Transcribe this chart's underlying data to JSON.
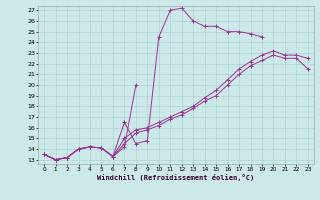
{
  "xlabel": "Windchill (Refroidissement éolien,°C)",
  "bg_color": "#cce8e8",
  "grid_color": "#aad4d4",
  "line_color": "#993399",
  "xlim_min": -0.5,
  "xlim_max": 23.5,
  "ylim_min": 12.6,
  "ylim_max": 27.4,
  "xticks": [
    0,
    1,
    2,
    3,
    4,
    5,
    6,
    7,
    8,
    9,
    10,
    11,
    12,
    13,
    14,
    15,
    16,
    17,
    18,
    19,
    20,
    21,
    22,
    23
  ],
  "yticks": [
    13,
    14,
    15,
    16,
    17,
    18,
    19,
    20,
    21,
    22,
    23,
    24,
    25,
    26,
    27
  ],
  "series": [
    {
      "x": [
        0,
        1,
        2,
        3,
        4,
        5,
        6,
        7,
        8
      ],
      "y": [
        13.5,
        13.0,
        13.2,
        14.0,
        14.2,
        14.1,
        13.3,
        14.2,
        20.0
      ]
    },
    {
      "x": [
        0,
        1,
        2,
        3,
        4,
        5,
        6,
        7,
        8,
        9,
        10,
        11,
        12,
        13,
        14,
        15,
        16,
        17,
        18,
        19
      ],
      "y": [
        13.5,
        13.0,
        13.2,
        14.0,
        14.2,
        14.1,
        13.3,
        16.5,
        14.5,
        14.8,
        24.5,
        27.0,
        27.2,
        26.0,
        25.5,
        25.5,
        25.0,
        25.0,
        24.8,
        24.5
      ]
    },
    {
      "x": [
        0,
        1,
        2,
        3,
        4,
        5,
        6,
        7,
        8,
        9,
        10,
        11,
        12,
        13,
        14,
        15,
        16,
        17,
        18,
        19,
        20,
        21,
        22,
        23
      ],
      "y": [
        13.5,
        13.0,
        13.2,
        14.0,
        14.2,
        14.1,
        13.3,
        15.0,
        15.8,
        16.0,
        16.5,
        17.0,
        17.5,
        18.0,
        18.8,
        19.5,
        20.5,
        21.5,
        22.2,
        22.8,
        23.2,
        22.8,
        22.8,
        22.5
      ]
    },
    {
      "x": [
        0,
        1,
        2,
        3,
        4,
        5,
        6,
        7,
        8,
        9,
        10,
        11,
        12,
        13,
        14,
        15,
        16,
        17,
        18,
        19,
        20,
        21,
        22,
        23
      ],
      "y": [
        13.5,
        13.0,
        13.2,
        14.0,
        14.2,
        14.1,
        13.3,
        14.5,
        15.5,
        15.8,
        16.2,
        16.8,
        17.2,
        17.8,
        18.5,
        19.0,
        20.0,
        21.0,
        21.8,
        22.3,
        22.8,
        22.5,
        22.5,
        21.5
      ]
    }
  ]
}
